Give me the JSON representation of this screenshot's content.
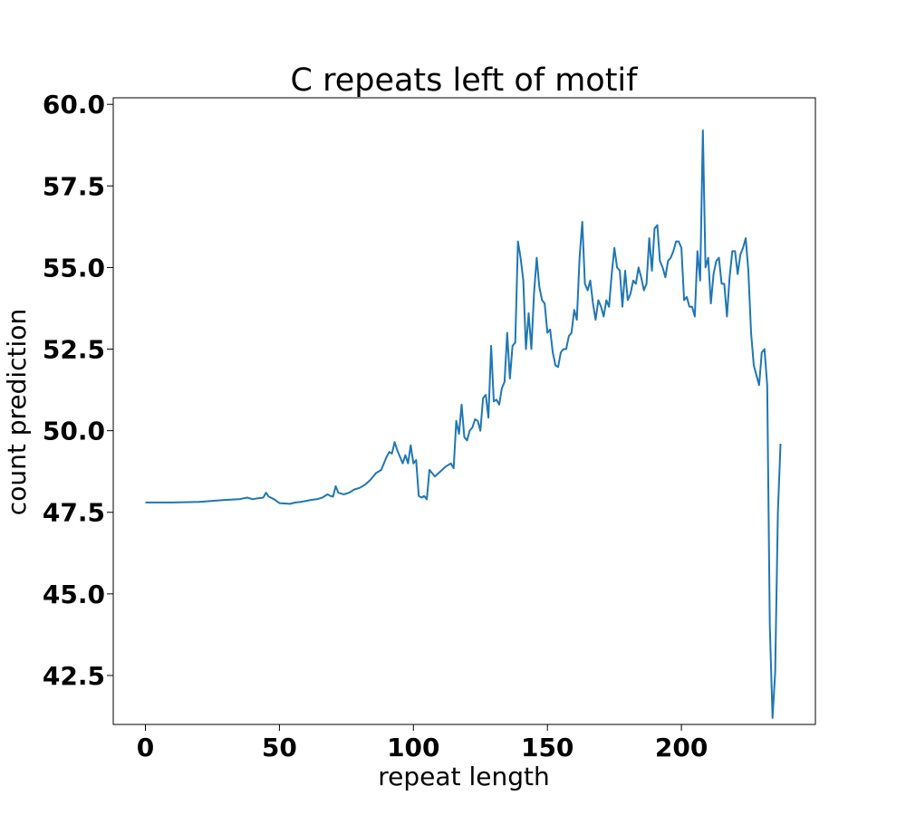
{
  "chart_data": {
    "type": "line",
    "title": "C repeats left of motif",
    "xlabel": "repeat length",
    "ylabel": "count prediction",
    "xlim": [
      -12,
      250
    ],
    "ylim": [
      41.0,
      60.2
    ],
    "xticks": [
      0,
      50,
      100,
      150,
      200
    ],
    "yticks": [
      42.5,
      45.0,
      47.5,
      50.0,
      52.5,
      55.0,
      57.5,
      60.0
    ],
    "xtick_labels": [
      "0",
      "50",
      "100",
      "150",
      "200"
    ],
    "ytick_labels": [
      "42.5",
      "45.0",
      "47.5",
      "50.0",
      "52.5",
      "55.0",
      "57.5",
      "60.0"
    ],
    "grid": false,
    "legend": "none",
    "series_color": "#1f77b4",
    "series": [
      {
        "x": [
          0,
          10,
          20,
          30,
          35,
          38,
          40,
          42,
          44,
          45,
          46,
          48,
          50,
          54,
          56,
          58,
          60,
          62,
          64,
          66,
          68,
          69,
          70,
          71,
          72,
          74,
          76,
          78,
          80,
          82,
          84,
          86,
          88,
          90,
          91,
          92,
          93,
          94,
          95,
          96,
          97,
          98,
          99,
          100,
          101,
          102,
          103,
          104,
          105,
          106,
          107,
          108,
          110,
          112,
          114,
          115,
          116,
          117,
          118,
          119,
          120,
          121,
          122,
          123,
          124,
          125,
          126,
          127,
          128,
          129,
          130,
          131,
          132,
          133,
          134,
          135,
          136,
          137,
          138,
          139,
          140,
          141,
          142,
          143,
          144,
          145,
          146,
          147,
          148,
          149,
          150,
          151,
          152,
          153,
          154,
          155,
          156,
          157,
          158,
          159,
          160,
          161,
          162,
          163,
          164,
          165,
          166,
          167,
          168,
          169,
          170,
          171,
          172,
          173,
          174,
          175,
          176,
          177,
          178,
          179,
          180,
          181,
          182,
          183,
          184,
          185,
          186,
          187,
          188,
          189,
          190,
          191,
          192,
          193,
          194,
          195,
          196,
          197,
          198,
          199,
          200,
          201,
          202,
          203,
          204,
          205,
          206,
          207,
          208,
          209,
          210,
          211,
          212,
          213,
          214,
          215,
          216,
          217,
          218,
          219,
          220,
          221,
          222,
          223,
          224,
          225,
          226,
          227,
          228,
          229,
          230,
          231,
          232,
          233,
          234,
          235,
          236,
          237
        ],
        "values": [
          47.8,
          47.8,
          47.82,
          47.88,
          47.9,
          47.95,
          47.9,
          47.93,
          47.95,
          48.1,
          47.98,
          47.9,
          47.78,
          47.76,
          47.8,
          47.82,
          47.85,
          47.88,
          47.9,
          47.95,
          48.05,
          48.0,
          47.98,
          48.3,
          48.1,
          48.05,
          48.1,
          48.2,
          48.25,
          48.35,
          48.5,
          48.7,
          48.8,
          49.2,
          49.35,
          49.3,
          49.65,
          49.4,
          49.2,
          49.0,
          49.25,
          49.0,
          49.55,
          49.0,
          49.1,
          48.0,
          47.95,
          48.0,
          47.9,
          48.8,
          48.7,
          48.6,
          48.75,
          48.9,
          49.0,
          48.85,
          50.3,
          49.9,
          50.8,
          49.8,
          49.7,
          50.0,
          50.1,
          50.35,
          50.3,
          50.0,
          51.0,
          51.1,
          50.4,
          52.6,
          50.9,
          50.95,
          50.8,
          51.3,
          51.5,
          53.0,
          51.6,
          52.6,
          52.7,
          55.8,
          55.3,
          54.6,
          52.5,
          53.6,
          52.5,
          54.2,
          55.3,
          54.4,
          54.0,
          53.9,
          53.0,
          53.1,
          52.4,
          52.0,
          51.95,
          52.4,
          52.5,
          52.5,
          52.9,
          53.0,
          53.7,
          53.4,
          55.3,
          56.4,
          54.5,
          54.3,
          54.6,
          53.9,
          53.4,
          54.0,
          53.8,
          53.5,
          54.0,
          53.8,
          54.8,
          55.6,
          55.0,
          54.9,
          53.8,
          54.9,
          54.0,
          54.2,
          54.6,
          54.5,
          55.0,
          54.7,
          54.3,
          54.5,
          55.9,
          54.9,
          56.2,
          56.3,
          55.2,
          55.0,
          54.7,
          55.2,
          55.3,
          55.5,
          55.8,
          55.8,
          55.6,
          54.0,
          54.1,
          53.8,
          53.8,
          53.5,
          55.5,
          54.6,
          59.2,
          55.0,
          55.3,
          53.9,
          54.8,
          55.2,
          55.3,
          54.5,
          54.5,
          53.5,
          54.7,
          55.5,
          55.5,
          54.8,
          55.4,
          55.6,
          55.9,
          54.9,
          53.0,
          52.0,
          51.7,
          51.4,
          52.4,
          52.5,
          51.4,
          44.0,
          41.2,
          42.6,
          47.5,
          49.6
        ]
      }
    ]
  }
}
